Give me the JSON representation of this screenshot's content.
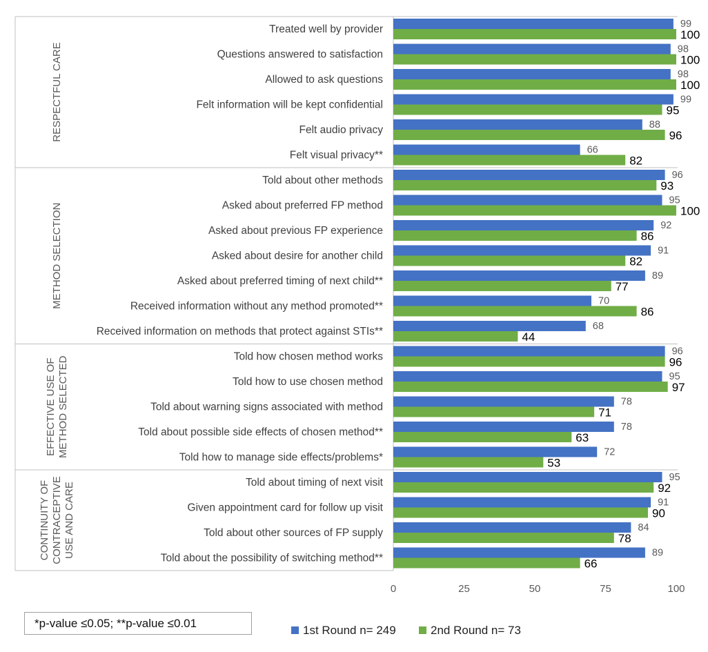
{
  "chart_data": {
    "type": "bar",
    "orientation": "horizontal",
    "xlim": [
      0,
      100
    ],
    "xticks": [
      0,
      25,
      50,
      75,
      100
    ],
    "grid": false,
    "legend_position": "bottom",
    "groups": [
      {
        "label": "RESPECTFUL CARE",
        "label_lines": [
          "RESPECTFUL CARE"
        ],
        "categories": [
          "Treated well by provider",
          "Questions answered to satisfaction",
          "Allowed to ask questions",
          "Felt information will be kept confidential",
          "Felt audio privacy",
          "Felt visual privacy**"
        ]
      },
      {
        "label": "METHOD SELECTION",
        "label_lines": [
          "METHOD SELECTION"
        ],
        "categories": [
          "Told about other methods",
          "Asked about preferred FP method",
          "Asked about previous FP experience",
          "Asked about desire for another child",
          "Asked about preferred timing of next child**",
          "Received information without any method promoted**",
          "Received information on methods that protect against STIs**"
        ]
      },
      {
        "label": "EFFECTIVE USE OF METHOD SELECTED",
        "label_lines": [
          "EFFECTIVE USE OF",
          "METHOD SELECTED"
        ],
        "categories": [
          "Told how chosen method works",
          "Told how to use chosen method",
          "Told about warning signs associated with method",
          "Told about possible side effects of chosen method**",
          "Told how to manage side effects/problems*"
        ]
      },
      {
        "label": "CONTINUITY OF CONTRACEPTIVE USE AND CARE",
        "label_lines": [
          "CONTINUITY OF",
          "CONTRACEPTIVE",
          "USE AND CARE"
        ],
        "categories": [
          "Told about timing of next visit",
          "Given appointment card for follow up visit",
          "Told about other sources of FP supply",
          "Told about the possibility of switching method**"
        ]
      }
    ],
    "series": [
      {
        "name": "1st Round n= 249",
        "color": "#4472c4",
        "values": [
          99,
          98,
          98,
          99,
          88,
          66,
          96,
          95,
          92,
          91,
          89,
          70,
          68,
          96,
          95,
          78,
          78,
          72,
          95,
          91,
          84,
          89
        ]
      },
      {
        "name": "2nd Round n= 73",
        "color": "#70ad47",
        "values": [
          100,
          100,
          100,
          95,
          96,
          82,
          93,
          100,
          86,
          82,
          77,
          86,
          44,
          96,
          97,
          71,
          63,
          53,
          92,
          90,
          78,
          66
        ]
      }
    ]
  },
  "footnote": "*p-value ≤0.05; **p-value ≤0.01"
}
